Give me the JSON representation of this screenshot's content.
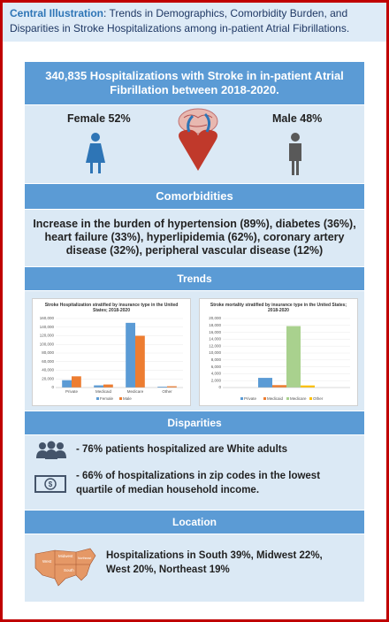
{
  "header": {
    "label": "Central Illustration",
    "title": ": Trends in Demographics, Comorbidity Burden, and Disparities in Stroke Hospitalizations among in-patient Atrial Fibrillations."
  },
  "summary": {
    "title": "340,835 Hospitalizations with Stroke in in-patient Atrial Fibrillation between 2018-2020.",
    "female": "Female 52%",
    "male": "Male 48%"
  },
  "comorbidities": {
    "title": "Comorbidities",
    "text": "Increase in the burden of hypertension (89%), diabetes (36%), heart failure (33%), hyperlipidemia (62%), coronary artery disease (32%), peripheral vascular disease (12%)"
  },
  "trends": {
    "title": "Trends"
  },
  "chart_data": [
    {
      "type": "bar",
      "title": "Stroke Hospitalization stratified by insurance type in the United States; 2018-2020",
      "categories": [
        "Private",
        "Medicaid",
        "Medicare",
        "Other"
      ],
      "series": [
        {
          "name": "Female",
          "color": "#5b9bd5",
          "values": [
            17000,
            5000,
            150000,
            2000
          ]
        },
        {
          "name": "Male",
          "color": "#ed7d31",
          "values": [
            26000,
            7000,
            120000,
            3000
          ]
        }
      ],
      "ylim": [
        0,
        160000
      ],
      "yticks": [
        0,
        {
          "value": 20000,
          "label": "20,000"
        },
        {
          "value": 40000,
          "label": "40,000"
        },
        {
          "value": 60000,
          "label": "60,000"
        },
        {
          "value": 80000,
          "label": "80,000"
        },
        {
          "value": 100000,
          "label": "100,000"
        },
        {
          "value": 120000,
          "label": "120,000"
        },
        {
          "value": 140000,
          "label": "140,000"
        },
        {
          "value": 160000,
          "label": "160,000"
        }
      ],
      "grid": true
    },
    {
      "type": "bar",
      "title": "Stroke mortality stratified by insurance type in the United States; 2018-2020",
      "categories": [
        null
      ],
      "series": [
        {
          "name": "Private",
          "color": "#5b9bd5",
          "values": [
            2800
          ]
        },
        {
          "name": "Medicaid",
          "color": "#ed7d31",
          "values": [
            700
          ]
        },
        {
          "name": "Medicare",
          "color": "#a9d18e",
          "values": [
            17800
          ]
        },
        {
          "name": "Other",
          "color": "#ffc000",
          "values": [
            600
          ]
        }
      ],
      "ylim": [
        0,
        20000
      ],
      "yticks": [
        0,
        {
          "value": 2000,
          "label": "2,000"
        },
        {
          "value": 4000,
          "label": "4,000"
        },
        {
          "value": 6000,
          "label": "6,000"
        },
        {
          "value": 8000,
          "label": "8,000"
        },
        {
          "value": 10000,
          "label": "10,000"
        },
        {
          "value": 12000,
          "label": "12,000"
        },
        {
          "value": 14000,
          "label": "14,000"
        },
        {
          "value": 16000,
          "label": "16,000"
        },
        {
          "value": 18000,
          "label": "18,000"
        },
        {
          "value": 20000,
          "label": "20,000"
        }
      ],
      "grid": true
    }
  ],
  "disparities": {
    "title": "Disparities",
    "items": [
      "- 76% patients hospitalized are White adults",
      "- 66% of hospitalizations in zip codes in the lowest quartile of median household income."
    ]
  },
  "location": {
    "title": "Location",
    "text": "Hospitalizations in South 39%, Midwest 22%, West 20%, Northeast 19%",
    "map_labels": [
      "West",
      "Midwest",
      "Northeast",
      "South"
    ]
  }
}
